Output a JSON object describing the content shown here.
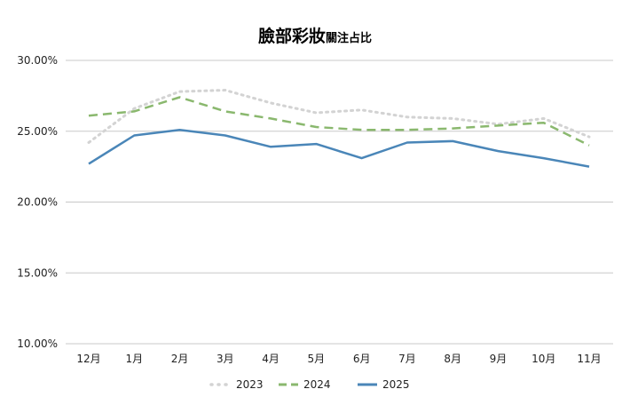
{
  "chart_data": {
    "type": "line",
    "title": "臉部彩妝",
    "subtitle": "關注占比",
    "xlabel": "",
    "ylabel": "",
    "categories": [
      "12月",
      "1月",
      "2月",
      "3月",
      "4月",
      "5月",
      "6月",
      "7月",
      "8月",
      "9月",
      "10月",
      "11月"
    ],
    "ylim": [
      10,
      30
    ],
    "yticks": [
      "10.00%",
      "15.00%",
      "20.00%",
      "25.00%",
      "30.00%"
    ],
    "ytick_values": [
      10,
      15,
      20,
      25,
      30
    ],
    "grid": true,
    "legend_position": "bottom",
    "series": [
      {
        "name": "2023",
        "color": "#d3d3d3",
        "style": "dotted",
        "values": [
          24.2,
          26.6,
          27.8,
          27.9,
          27.0,
          26.3,
          26.5,
          26.0,
          25.9,
          25.5,
          25.9,
          24.6
        ]
      },
      {
        "name": "2024",
        "color": "#8ab86e",
        "style": "dashed",
        "values": [
          26.1,
          26.4,
          27.4,
          26.4,
          25.9,
          25.3,
          25.1,
          25.1,
          25.2,
          25.4,
          25.6,
          24.0
        ]
      },
      {
        "name": "2025",
        "color": "#4a86b8",
        "style": "solid",
        "values": [
          22.7,
          24.7,
          25.1,
          24.7,
          23.9,
          24.1,
          23.1,
          24.2,
          24.3,
          23.6,
          23.1,
          22.5
        ]
      }
    ]
  }
}
